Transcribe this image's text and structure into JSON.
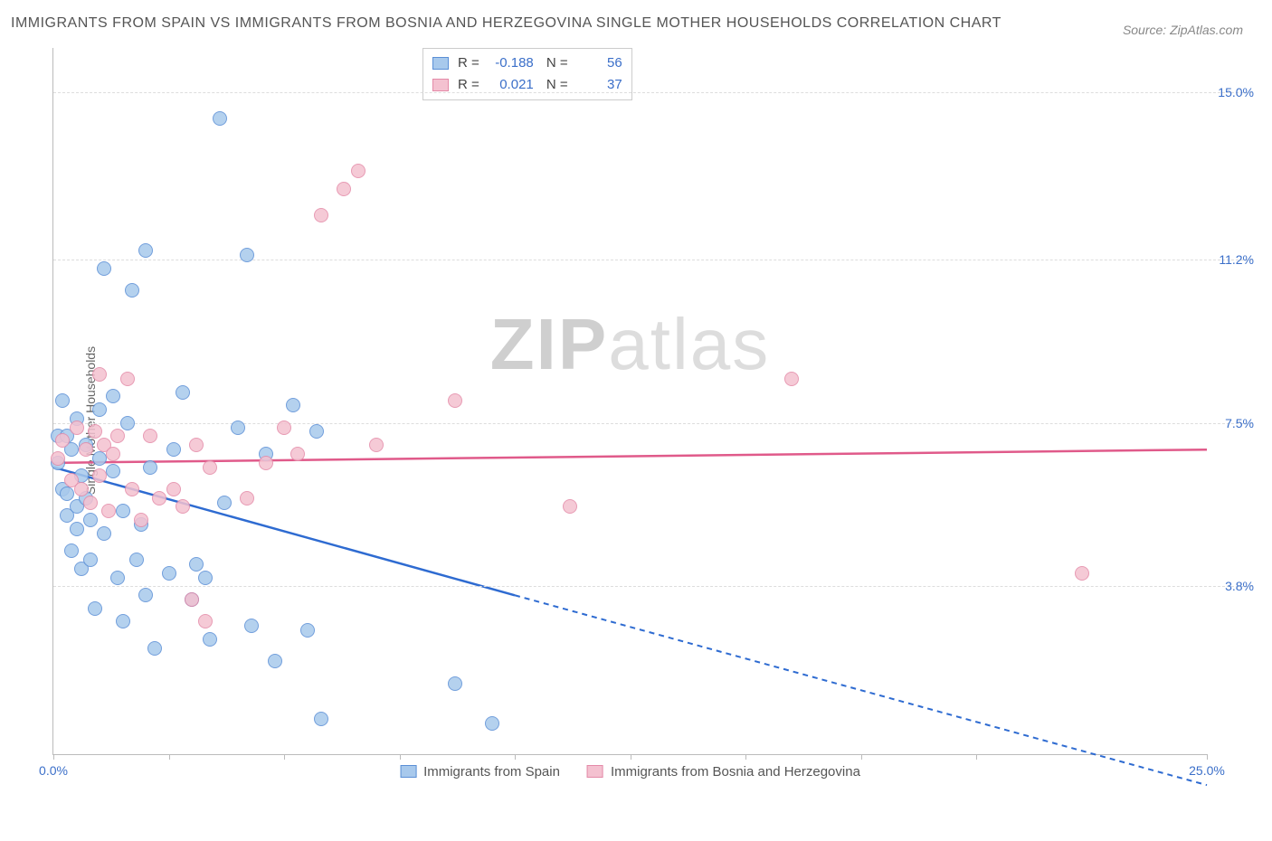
{
  "header": {
    "title": "IMMIGRANTS FROM SPAIN VS IMMIGRANTS FROM BOSNIA AND HERZEGOVINA SINGLE MOTHER HOUSEHOLDS CORRELATION CHART",
    "source_label": "Source: ZipAtlas.com"
  },
  "chart": {
    "type": "scatter",
    "ylabel": "Single Mother Households",
    "xlim": [
      0,
      25
    ],
    "ylim": [
      0,
      16
    ],
    "background_color": "#ffffff",
    "grid_color": "#dddddd",
    "axis_color": "#bbbbbb",
    "tick_label_color": "#3b6fc9",
    "tick_fontsize": 14,
    "y_ticks": [
      {
        "v": 3.8,
        "label": "3.8%"
      },
      {
        "v": 7.5,
        "label": "7.5%"
      },
      {
        "v": 11.2,
        "label": "11.2%"
      },
      {
        "v": 15.0,
        "label": "15.0%"
      }
    ],
    "x_ticks": [
      0,
      2.5,
      5,
      7.5,
      10,
      12.5,
      15,
      17.5,
      20,
      25
    ],
    "x_labels": [
      {
        "v": 0,
        "label": "0.0%"
      },
      {
        "v": 25,
        "label": "25.0%"
      }
    ],
    "marker_radius": 8,
    "marker_stroke_width": 1.5,
    "marker_fill_opacity": 0.35,
    "series": [
      {
        "name": "Immigrants from Spain",
        "stroke": "#5a8fd6",
        "fill": "#a8c9ec",
        "line_color": "#2e6bd1",
        "R": "-0.188",
        "N": "56",
        "trend": {
          "x1": 0,
          "y1": 6.5,
          "x2": 10,
          "y2": 3.6,
          "x3": 25,
          "y3": -0.7
        },
        "points": [
          [
            0.1,
            6.6
          ],
          [
            0.1,
            7.2
          ],
          [
            0.2,
            6.0
          ],
          [
            0.2,
            8.0
          ],
          [
            0.3,
            5.4
          ],
          [
            0.3,
            5.9
          ],
          [
            0.3,
            7.2
          ],
          [
            0.4,
            4.6
          ],
          [
            0.4,
            6.9
          ],
          [
            0.5,
            5.1
          ],
          [
            0.5,
            5.6
          ],
          [
            0.5,
            7.6
          ],
          [
            0.6,
            4.2
          ],
          [
            0.6,
            6.3
          ],
          [
            0.7,
            5.8
          ],
          [
            0.7,
            7.0
          ],
          [
            0.8,
            4.4
          ],
          [
            0.8,
            5.3
          ],
          [
            0.9,
            3.3
          ],
          [
            1.0,
            6.7
          ],
          [
            1.0,
            7.8
          ],
          [
            1.1,
            5.0
          ],
          [
            1.1,
            11.0
          ],
          [
            1.3,
            8.1
          ],
          [
            1.3,
            6.4
          ],
          [
            1.4,
            4.0
          ],
          [
            1.5,
            3.0
          ],
          [
            1.5,
            5.5
          ],
          [
            1.6,
            7.5
          ],
          [
            1.7,
            10.5
          ],
          [
            1.8,
            4.4
          ],
          [
            1.9,
            5.2
          ],
          [
            2.0,
            11.4
          ],
          [
            2.0,
            3.6
          ],
          [
            2.1,
            6.5
          ],
          [
            2.2,
            2.4
          ],
          [
            2.5,
            4.1
          ],
          [
            2.6,
            6.9
          ],
          [
            2.8,
            8.2
          ],
          [
            3.0,
            3.5
          ],
          [
            3.1,
            4.3
          ],
          [
            3.3,
            4.0
          ],
          [
            3.4,
            2.6
          ],
          [
            3.6,
            14.4
          ],
          [
            3.7,
            5.7
          ],
          [
            4.0,
            7.4
          ],
          [
            4.2,
            11.3
          ],
          [
            4.3,
            2.9
          ],
          [
            4.6,
            6.8
          ],
          [
            4.8,
            2.1
          ],
          [
            5.2,
            7.9
          ],
          [
            5.5,
            2.8
          ],
          [
            5.7,
            7.3
          ],
          [
            5.8,
            0.8
          ],
          [
            8.7,
            1.6
          ],
          [
            9.5,
            0.7
          ]
        ]
      },
      {
        "name": "Immigrants from Bosnia and Herzegovina",
        "stroke": "#e48aa8",
        "fill": "#f4c1d0",
        "line_color": "#e05a8a",
        "R": "0.021",
        "N": "37",
        "trend": {
          "x1": 0,
          "y1": 6.6,
          "x2": 25,
          "y2": 6.9
        },
        "points": [
          [
            0.1,
            6.7
          ],
          [
            0.2,
            7.1
          ],
          [
            0.4,
            6.2
          ],
          [
            0.5,
            7.4
          ],
          [
            0.6,
            6.0
          ],
          [
            0.7,
            6.9
          ],
          [
            0.8,
            5.7
          ],
          [
            0.9,
            7.3
          ],
          [
            1.0,
            6.3
          ],
          [
            1.0,
            8.6
          ],
          [
            1.1,
            7.0
          ],
          [
            1.2,
            5.5
          ],
          [
            1.3,
            6.8
          ],
          [
            1.4,
            7.2
          ],
          [
            1.6,
            8.5
          ],
          [
            1.7,
            6.0
          ],
          [
            1.9,
            5.3
          ],
          [
            2.1,
            7.2
          ],
          [
            2.3,
            5.8
          ],
          [
            2.6,
            6.0
          ],
          [
            2.8,
            5.6
          ],
          [
            3.0,
            3.5
          ],
          [
            3.1,
            7.0
          ],
          [
            3.3,
            3.0
          ],
          [
            3.4,
            6.5
          ],
          [
            4.2,
            5.8
          ],
          [
            4.6,
            6.6
          ],
          [
            5.0,
            7.4
          ],
          [
            5.3,
            6.8
          ],
          [
            5.8,
            12.2
          ],
          [
            6.3,
            12.8
          ],
          [
            6.6,
            13.2
          ],
          [
            7.0,
            7.0
          ],
          [
            8.7,
            8.0
          ],
          [
            11.2,
            5.6
          ],
          [
            16.0,
            8.5
          ],
          [
            22.3,
            4.1
          ]
        ]
      }
    ],
    "legend_bottom": [
      {
        "label": "Immigrants from Spain",
        "stroke": "#5a8fd6",
        "fill": "#a8c9ec"
      },
      {
        "label": "Immigrants from Bosnia and Herzegovina",
        "stroke": "#e48aa8",
        "fill": "#f4c1d0"
      }
    ],
    "watermark": {
      "bold": "ZIP",
      "rest": "atlas"
    }
  }
}
